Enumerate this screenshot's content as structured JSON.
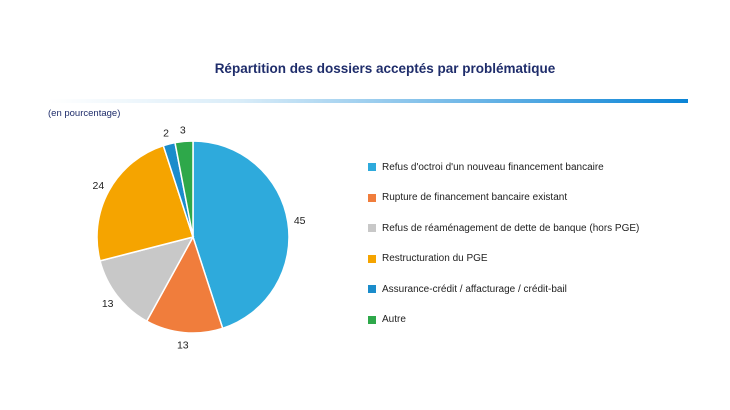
{
  "chart_data": {
    "type": "pie",
    "title": "Répartition des dossiers acceptés par problématique",
    "unit_label": "(en pourcentage)",
    "start_angle_deg": 0,
    "direction": "clockwise",
    "legend_position": "right",
    "slices": [
      {
        "label": "Refus d'octroi d'un nouveau financement bancaire",
        "value": 45,
        "value_label": "45",
        "color": "#2eaadc"
      },
      {
        "label": "Rupture de financement bancaire existant",
        "value": 13,
        "value_label": "13",
        "color": "#f07d3c"
      },
      {
        "label": "Refus de réaménagement de dette de banque (hors PGE)",
        "value": 13,
        "value_label": "13",
        "color": "#c8c8c8"
      },
      {
        "label": "Restructuration du PGE",
        "value": 24,
        "value_label": "24",
        "color": "#f5a400"
      },
      {
        "label": "Assurance-crédit / affacturage / crédit-bail",
        "value": 2,
        "value_label": "2",
        "color": "#1a8ccb"
      },
      {
        "label": "Autre",
        "value": 3,
        "value_label": "3",
        "color": "#2ea84a"
      }
    ]
  }
}
